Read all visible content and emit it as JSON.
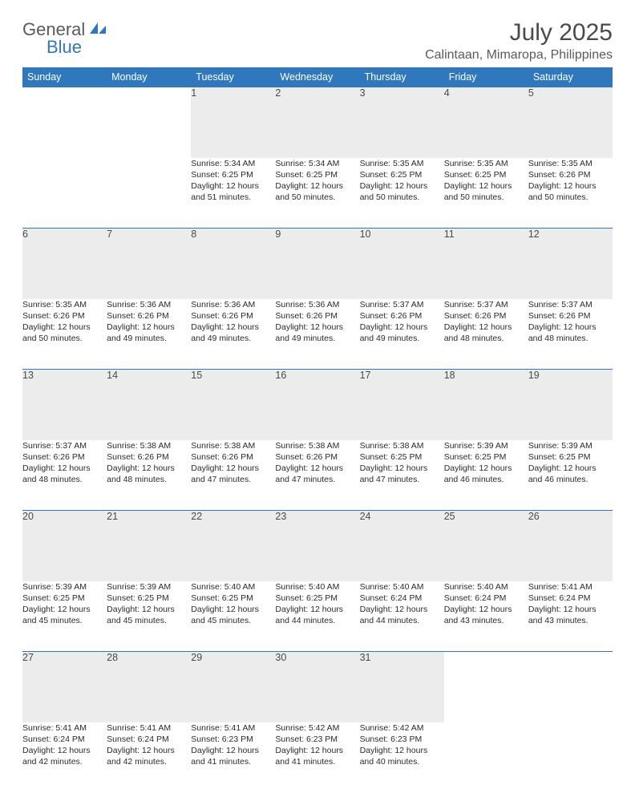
{
  "logo": {
    "part1": "General",
    "part2": "Blue"
  },
  "title": "July 2025",
  "location": "Calintaan, Mimaropa, Philippines",
  "colors": {
    "header_bg": "#2f78bd",
    "header_text": "#ffffff",
    "daynum_bg": "#ececec",
    "text": "#2b2b2b",
    "logo_gray": "#5a5a5a",
    "logo_blue": "#2f78bd"
  },
  "dayHeaders": [
    "Sunday",
    "Monday",
    "Tuesday",
    "Wednesday",
    "Thursday",
    "Friday",
    "Saturday"
  ],
  "weeks": [
    [
      null,
      null,
      {
        "n": "1",
        "sr": "Sunrise: 5:34 AM",
        "ss": "Sunset: 6:25 PM",
        "d1": "Daylight: 12 hours",
        "d2": "and 51 minutes."
      },
      {
        "n": "2",
        "sr": "Sunrise: 5:34 AM",
        "ss": "Sunset: 6:25 PM",
        "d1": "Daylight: 12 hours",
        "d2": "and 50 minutes."
      },
      {
        "n": "3",
        "sr": "Sunrise: 5:35 AM",
        "ss": "Sunset: 6:25 PM",
        "d1": "Daylight: 12 hours",
        "d2": "and 50 minutes."
      },
      {
        "n": "4",
        "sr": "Sunrise: 5:35 AM",
        "ss": "Sunset: 6:25 PM",
        "d1": "Daylight: 12 hours",
        "d2": "and 50 minutes."
      },
      {
        "n": "5",
        "sr": "Sunrise: 5:35 AM",
        "ss": "Sunset: 6:26 PM",
        "d1": "Daylight: 12 hours",
        "d2": "and 50 minutes."
      }
    ],
    [
      {
        "n": "6",
        "sr": "Sunrise: 5:35 AM",
        "ss": "Sunset: 6:26 PM",
        "d1": "Daylight: 12 hours",
        "d2": "and 50 minutes."
      },
      {
        "n": "7",
        "sr": "Sunrise: 5:36 AM",
        "ss": "Sunset: 6:26 PM",
        "d1": "Daylight: 12 hours",
        "d2": "and 49 minutes."
      },
      {
        "n": "8",
        "sr": "Sunrise: 5:36 AM",
        "ss": "Sunset: 6:26 PM",
        "d1": "Daylight: 12 hours",
        "d2": "and 49 minutes."
      },
      {
        "n": "9",
        "sr": "Sunrise: 5:36 AM",
        "ss": "Sunset: 6:26 PM",
        "d1": "Daylight: 12 hours",
        "d2": "and 49 minutes."
      },
      {
        "n": "10",
        "sr": "Sunrise: 5:37 AM",
        "ss": "Sunset: 6:26 PM",
        "d1": "Daylight: 12 hours",
        "d2": "and 49 minutes."
      },
      {
        "n": "11",
        "sr": "Sunrise: 5:37 AM",
        "ss": "Sunset: 6:26 PM",
        "d1": "Daylight: 12 hours",
        "d2": "and 48 minutes."
      },
      {
        "n": "12",
        "sr": "Sunrise: 5:37 AM",
        "ss": "Sunset: 6:26 PM",
        "d1": "Daylight: 12 hours",
        "d2": "and 48 minutes."
      }
    ],
    [
      {
        "n": "13",
        "sr": "Sunrise: 5:37 AM",
        "ss": "Sunset: 6:26 PM",
        "d1": "Daylight: 12 hours",
        "d2": "and 48 minutes."
      },
      {
        "n": "14",
        "sr": "Sunrise: 5:38 AM",
        "ss": "Sunset: 6:26 PM",
        "d1": "Daylight: 12 hours",
        "d2": "and 48 minutes."
      },
      {
        "n": "15",
        "sr": "Sunrise: 5:38 AM",
        "ss": "Sunset: 6:26 PM",
        "d1": "Daylight: 12 hours",
        "d2": "and 47 minutes."
      },
      {
        "n": "16",
        "sr": "Sunrise: 5:38 AM",
        "ss": "Sunset: 6:26 PM",
        "d1": "Daylight: 12 hours",
        "d2": "and 47 minutes."
      },
      {
        "n": "17",
        "sr": "Sunrise: 5:38 AM",
        "ss": "Sunset: 6:25 PM",
        "d1": "Daylight: 12 hours",
        "d2": "and 47 minutes."
      },
      {
        "n": "18",
        "sr": "Sunrise: 5:39 AM",
        "ss": "Sunset: 6:25 PM",
        "d1": "Daylight: 12 hours",
        "d2": "and 46 minutes."
      },
      {
        "n": "19",
        "sr": "Sunrise: 5:39 AM",
        "ss": "Sunset: 6:25 PM",
        "d1": "Daylight: 12 hours",
        "d2": "and 46 minutes."
      }
    ],
    [
      {
        "n": "20",
        "sr": "Sunrise: 5:39 AM",
        "ss": "Sunset: 6:25 PM",
        "d1": "Daylight: 12 hours",
        "d2": "and 45 minutes."
      },
      {
        "n": "21",
        "sr": "Sunrise: 5:39 AM",
        "ss": "Sunset: 6:25 PM",
        "d1": "Daylight: 12 hours",
        "d2": "and 45 minutes."
      },
      {
        "n": "22",
        "sr": "Sunrise: 5:40 AM",
        "ss": "Sunset: 6:25 PM",
        "d1": "Daylight: 12 hours",
        "d2": "and 45 minutes."
      },
      {
        "n": "23",
        "sr": "Sunrise: 5:40 AM",
        "ss": "Sunset: 6:25 PM",
        "d1": "Daylight: 12 hours",
        "d2": "and 44 minutes."
      },
      {
        "n": "24",
        "sr": "Sunrise: 5:40 AM",
        "ss": "Sunset: 6:24 PM",
        "d1": "Daylight: 12 hours",
        "d2": "and 44 minutes."
      },
      {
        "n": "25",
        "sr": "Sunrise: 5:40 AM",
        "ss": "Sunset: 6:24 PM",
        "d1": "Daylight: 12 hours",
        "d2": "and 43 minutes."
      },
      {
        "n": "26",
        "sr": "Sunrise: 5:41 AM",
        "ss": "Sunset: 6:24 PM",
        "d1": "Daylight: 12 hours",
        "d2": "and 43 minutes."
      }
    ],
    [
      {
        "n": "27",
        "sr": "Sunrise: 5:41 AM",
        "ss": "Sunset: 6:24 PM",
        "d1": "Daylight: 12 hours",
        "d2": "and 42 minutes."
      },
      {
        "n": "28",
        "sr": "Sunrise: 5:41 AM",
        "ss": "Sunset: 6:24 PM",
        "d1": "Daylight: 12 hours",
        "d2": "and 42 minutes."
      },
      {
        "n": "29",
        "sr": "Sunrise: 5:41 AM",
        "ss": "Sunset: 6:23 PM",
        "d1": "Daylight: 12 hours",
        "d2": "and 41 minutes."
      },
      {
        "n": "30",
        "sr": "Sunrise: 5:42 AM",
        "ss": "Sunset: 6:23 PM",
        "d1": "Daylight: 12 hours",
        "d2": "and 41 minutes."
      },
      {
        "n": "31",
        "sr": "Sunrise: 5:42 AM",
        "ss": "Sunset: 6:23 PM",
        "d1": "Daylight: 12 hours",
        "d2": "and 40 minutes."
      },
      null,
      null
    ]
  ]
}
